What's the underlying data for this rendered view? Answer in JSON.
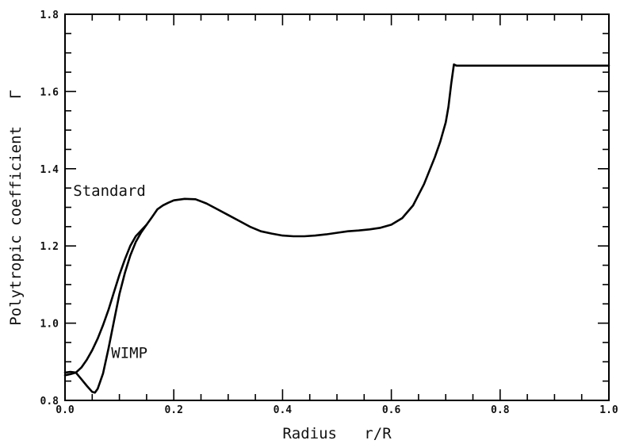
{
  "chart_data": {
    "type": "line",
    "xlabel": "Radius   r/R",
    "ylabel": "Polytropic coefficient   Γ",
    "xlim": [
      0.0,
      1.0
    ],
    "ylim": [
      0.8,
      1.8
    ],
    "x_ticks": [
      "0.0",
      "0.2",
      "0.4",
      "0.6",
      "0.8",
      "1.0"
    ],
    "y_ticks": [
      "0.8",
      "1.0",
      "1.2",
      "1.4",
      "1.6",
      "1.8"
    ],
    "grid": false,
    "annotations": [
      {
        "text": "Standard",
        "x": 0.015,
        "y": 1.33
      },
      {
        "text": "WIMP",
        "x": 0.085,
        "y": 0.91
      }
    ],
    "series": [
      {
        "x": [
          0.0,
          0.01,
          0.02,
          0.03,
          0.04,
          0.05,
          0.06,
          0.07,
          0.08,
          0.09,
          0.1,
          0.11,
          0.12,
          0.13,
          0.14,
          0.15,
          0.16,
          0.17,
          0.18,
          0.19,
          0.2,
          0.22,
          0.24,
          0.26,
          0.28,
          0.3,
          0.32,
          0.34,
          0.36,
          0.38,
          0.4,
          0.42,
          0.44,
          0.46,
          0.48,
          0.5,
          0.52,
          0.54,
          0.56,
          0.58,
          0.6,
          0.62,
          0.64,
          0.66,
          0.68,
          0.69,
          0.7,
          0.705,
          0.71,
          0.715,
          0.72,
          0.75,
          0.8,
          0.85,
          0.9,
          0.95,
          1.0
        ],
        "values": [
          0.865,
          0.868,
          0.872,
          0.885,
          0.905,
          0.93,
          0.96,
          0.995,
          1.035,
          1.08,
          1.125,
          1.165,
          1.2,
          1.225,
          1.24,
          1.255,
          1.275,
          1.295,
          1.305,
          1.312,
          1.318,
          1.322,
          1.321,
          1.31,
          1.295,
          1.28,
          1.265,
          1.25,
          1.238,
          1.232,
          1.227,
          1.225,
          1.225,
          1.227,
          1.23,
          1.234,
          1.238,
          1.24,
          1.243,
          1.247,
          1.255,
          1.272,
          1.305,
          1.36,
          1.43,
          1.47,
          1.52,
          1.56,
          1.62,
          1.67,
          1.667,
          1.667,
          1.667,
          1.667,
          1.667,
          1.667,
          1.667
        ]
      },
      {
        "x": [
          0.0,
          0.01,
          0.02,
          0.03,
          0.04,
          0.05,
          0.055,
          0.06,
          0.07,
          0.08,
          0.09,
          0.1,
          0.11,
          0.12,
          0.13,
          0.14,
          0.15
        ],
        "values": [
          0.872,
          0.874,
          0.872,
          0.855,
          0.838,
          0.822,
          0.82,
          0.83,
          0.87,
          0.935,
          1.005,
          1.075,
          1.13,
          1.175,
          1.21,
          1.235,
          1.255
        ]
      }
    ]
  }
}
